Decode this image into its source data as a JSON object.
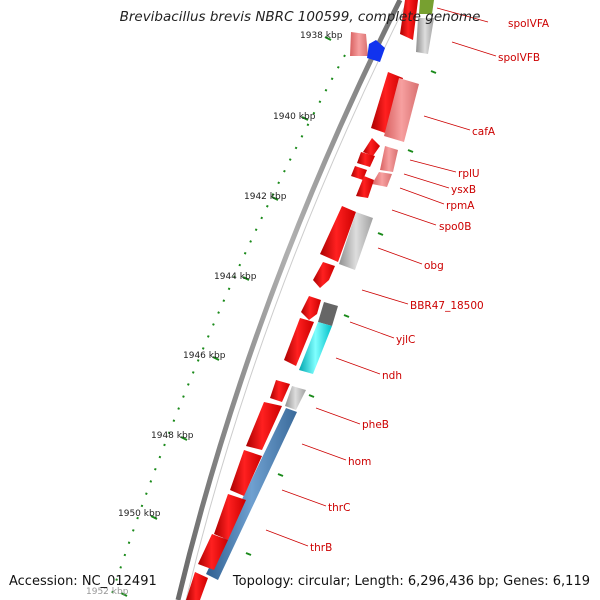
{
  "title": "Brevibacillus brevis NBRC 100599, complete genome",
  "accession": "Accession: NC_012491",
  "topology": "Topology: circular; Length: 6,296,436 bp; Genes: 6,119",
  "colors": {
    "backbone": "#8a8a8a",
    "gene_forward": "#ee1111",
    "gene_pink": "#f08888",
    "gene_gray": "#bbbbbb",
    "gene_blue": "#1133ee",
    "gene_cyan": "#00e5ee",
    "gene_steel": "#4f86b8",
    "gene_dark": "#666666",
    "gene_olive": "#77a030",
    "tick": "#1a8a1a",
    "label": "#cc0000"
  },
  "scale": [
    {
      "label": "1938 kbp"
    },
    {
      "label": "1940 kbp"
    },
    {
      "label": "1942 kbp"
    },
    {
      "label": "1944 kbp"
    },
    {
      "label": "1946 kbp"
    },
    {
      "label": "1948 kbp"
    },
    {
      "label": "1950 kbp"
    },
    {
      "label": "1952 kbp"
    }
  ],
  "gene_labels": [
    {
      "name": "spoIVFA"
    },
    {
      "name": "spoIVFB"
    },
    {
      "name": "cafA"
    },
    {
      "name": "rplU"
    },
    {
      "name": "ysxB"
    },
    {
      "name": "rpmA"
    },
    {
      "name": "spo0B"
    },
    {
      "name": "obg"
    },
    {
      "name": "BBR47_18500"
    },
    {
      "name": "yjlC"
    },
    {
      "name": "ndh"
    },
    {
      "name": "pheB"
    },
    {
      "name": "hom"
    },
    {
      "name": "thrC"
    },
    {
      "name": "thrB"
    }
  ]
}
